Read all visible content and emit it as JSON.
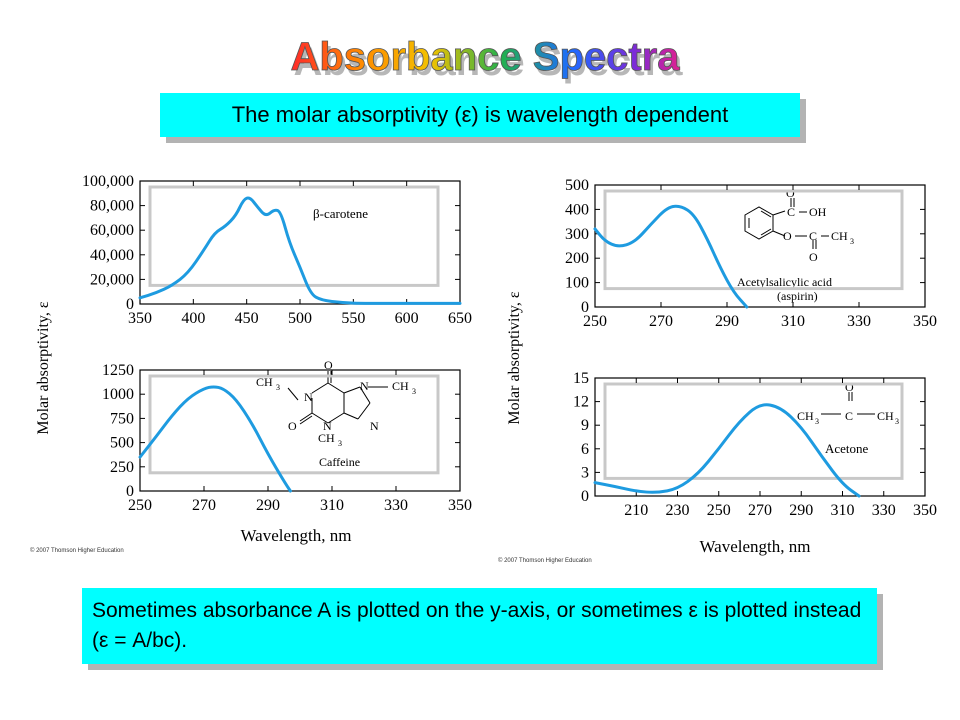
{
  "slide": {
    "title": "Absorbance Spectra",
    "subtitle": "The molar absorptivity (ε) is wavelength dependent",
    "note": "Sometimes absorbance A is plotted on the y-axis, or sometimes ε is plotted instead (ε = A/bc).",
    "copyright_left": "© 2007 Thomson Higher Education",
    "copyright_right": "© 2007 Thomson Higher Education"
  },
  "left_panel": {
    "ylabel": "Molar absorptivity,  ε",
    "xlabel": "Wavelength, nm"
  },
  "right_panel": {
    "ylabel": "Molar absorptivity,  ε",
    "xlabel": "Wavelength, nm"
  },
  "colors": {
    "curve": "#1e9be0",
    "box": "#00ffff",
    "shadow": "#b3b3b3"
  },
  "chart_data": [
    {
      "id": "beta-carotene",
      "type": "line",
      "label": "β-carotene",
      "xlim": [
        350,
        650
      ],
      "ylim": [
        0,
        100000
      ],
      "xticks": [
        350,
        400,
        450,
        500,
        550,
        600,
        650
      ],
      "yticks": [
        0,
        20000,
        40000,
        60000,
        80000,
        100000
      ],
      "ytick_labels": [
        "0",
        "20,000",
        "40,000",
        "60,000",
        "80,000",
        "100,000"
      ],
      "x": [
        350,
        365,
        380,
        395,
        410,
        420,
        430,
        440,
        447,
        453,
        460,
        468,
        476,
        482,
        490,
        500,
        510,
        520,
        540,
        560,
        600,
        650
      ],
      "y": [
        5000,
        9000,
        15000,
        25000,
        44000,
        58000,
        63000,
        72000,
        85000,
        87000,
        79000,
        71000,
        77000,
        75000,
        50000,
        30000,
        8000,
        3000,
        1000,
        500,
        500,
        500
      ]
    },
    {
      "id": "caffeine",
      "type": "line",
      "label": "Caffeine",
      "xlim": [
        250,
        350
      ],
      "ylim": [
        0,
        1250
      ],
      "xticks": [
        250,
        270,
        290,
        310,
        330,
        350
      ],
      "yticks": [
        0,
        250,
        500,
        750,
        1000,
        1250
      ],
      "ytick_labels": [
        "0",
        "250",
        "500",
        "750",
        "1000",
        "1250"
      ],
      "x": [
        250,
        255,
        260,
        265,
        270,
        273,
        276,
        280,
        285,
        290,
        295,
        297
      ],
      "y": [
        350,
        560,
        780,
        960,
        1060,
        1080,
        1060,
        950,
        700,
        380,
        100,
        0
      ]
    },
    {
      "id": "aspirin",
      "type": "line",
      "label": "Acetylsalicylic acid (aspirin)",
      "xlim": [
        250,
        350
      ],
      "ylim": [
        0,
        500
      ],
      "xticks": [
        250,
        270,
        290,
        310,
        330,
        350
      ],
      "yticks": [
        0,
        100,
        200,
        300,
        400,
        500
      ],
      "x": [
        250,
        253,
        257,
        262,
        267,
        272,
        276,
        280,
        284,
        288,
        292,
        296
      ],
      "y": [
        320,
        270,
        245,
        265,
        340,
        410,
        415,
        380,
        280,
        160,
        60,
        0
      ]
    },
    {
      "id": "acetone",
      "type": "line",
      "label": "Acetone",
      "xlim": [
        190,
        350
      ],
      "ylim": [
        0,
        15
      ],
      "xticks": [
        210,
        230,
        250,
        270,
        290,
        310,
        330,
        350
      ],
      "yticks": [
        0,
        3,
        6,
        9,
        12,
        15
      ],
      "x": [
        190,
        200,
        210,
        220,
        230,
        240,
        250,
        260,
        270,
        280,
        290,
        300,
        310,
        318
      ],
      "y": [
        1.7,
        1.2,
        0.6,
        0.4,
        0.9,
        2.8,
        6.0,
        9.5,
        11.8,
        11.3,
        8.8,
        5.0,
        1.5,
        0.0
      ]
    }
  ]
}
